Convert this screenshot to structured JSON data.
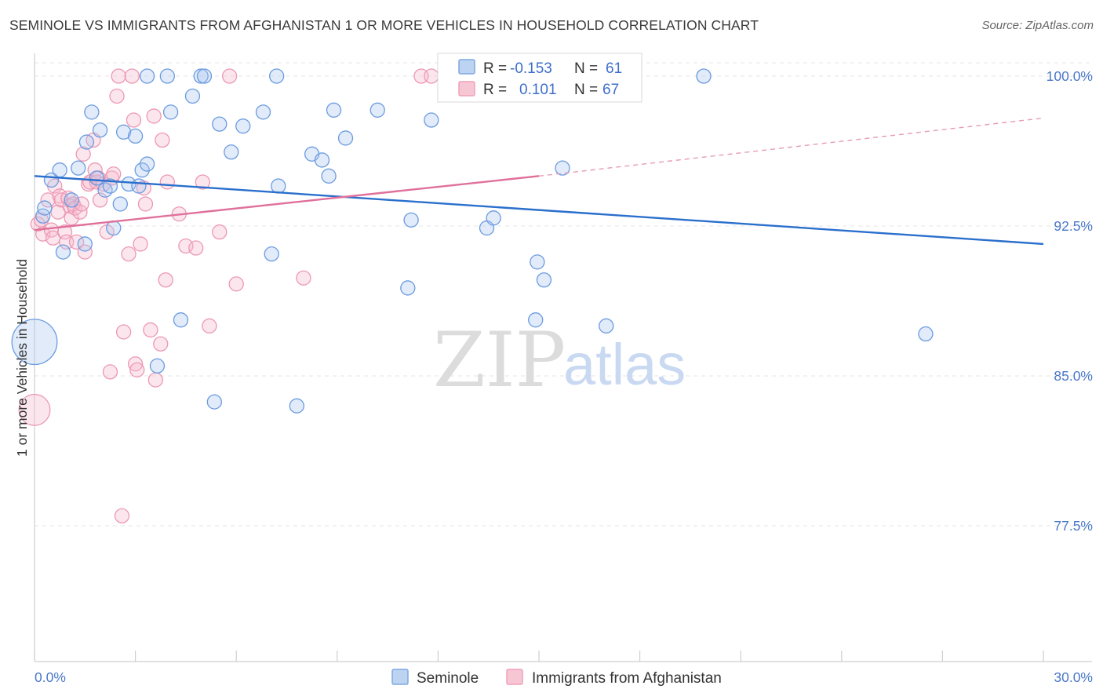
{
  "title": "SEMINOLE VS IMMIGRANTS FROM AFGHANISTAN 1 OR MORE VEHICLES IN HOUSEHOLD CORRELATION CHART",
  "source": "Source: ZipAtlas.com",
  "watermark": {
    "zip": "ZIP",
    "atlas": "atlas"
  },
  "colors": {
    "blue": "#7fa8e0",
    "blue_line": "#2a6fcc",
    "pink": "#f0a0b8",
    "pink_line": "#e0709a",
    "axis_label": "#4a78c8"
  },
  "legend": {
    "rows": [
      {
        "r_label": "R =",
        "r_value": "-0.153",
        "n_label": "N =",
        "n_value": "61"
      },
      {
        "r_label": "R =",
        "r_value": "0.101",
        "n_label": "N =",
        "n_value": "67"
      }
    ]
  },
  "chart_data": {
    "type": "scatter",
    "title": "SEMINOLE VS IMMIGRANTS FROM AFGHANISTAN 1 OR MORE VEHICLES IN HOUSEHOLD CORRELATION CHART",
    "xlabel": "",
    "ylabel": "1 or more Vehicles in Household",
    "xlim": [
      0,
      30
    ],
    "ylim": [
      70,
      100.8
    ],
    "x_tick_labels": [
      "0.0%",
      "30.0%"
    ],
    "y_ticks": [
      77.5,
      85.0,
      92.5,
      100.0
    ],
    "y_tick_labels": [
      "77.5%",
      "85.0%",
      "92.5%",
      "100.0%"
    ],
    "legend_position": "top-center",
    "grid": true,
    "series": [
      {
        "name": "Seminole",
        "points": [
          [
            0.0,
            86.7,
            3.2
          ],
          [
            0.25,
            93.0,
            1
          ],
          [
            0.3,
            93.4,
            1
          ],
          [
            0.5,
            94.8,
            1
          ],
          [
            0.75,
            95.3,
            1
          ],
          [
            0.85,
            91.2,
            1
          ],
          [
            1.1,
            93.8,
            1
          ],
          [
            1.3,
            95.4,
            1
          ],
          [
            1.5,
            91.6,
            1
          ],
          [
            1.55,
            96.7,
            1
          ],
          [
            1.7,
            98.2,
            1
          ],
          [
            1.85,
            94.9,
            1
          ],
          [
            1.95,
            97.3,
            1
          ],
          [
            2.1,
            94.3,
            1
          ],
          [
            2.25,
            94.5,
            1
          ],
          [
            2.35,
            92.4,
            1
          ],
          [
            2.55,
            93.6,
            1
          ],
          [
            2.65,
            97.2,
            1
          ],
          [
            2.8,
            94.6,
            1
          ],
          [
            3.0,
            97.0,
            1
          ],
          [
            3.1,
            94.5,
            1
          ],
          [
            3.2,
            95.3,
            1
          ],
          [
            3.35,
            95.6,
            1
          ],
          [
            3.35,
            100.0,
            1
          ],
          [
            3.65,
            85.5,
            1
          ],
          [
            3.95,
            100.0,
            1
          ],
          [
            4.05,
            98.2,
            1
          ],
          [
            4.35,
            87.8,
            1
          ],
          [
            4.7,
            99.0,
            1
          ],
          [
            4.95,
            100.0,
            1
          ],
          [
            5.05,
            100.0,
            1
          ],
          [
            5.35,
            83.7,
            1
          ],
          [
            5.5,
            97.6,
            1
          ],
          [
            5.85,
            96.2,
            1
          ],
          [
            6.2,
            97.5,
            1
          ],
          [
            6.8,
            98.2,
            1
          ],
          [
            7.05,
            91.1,
            1
          ],
          [
            7.2,
            100.0,
            1
          ],
          [
            7.25,
            94.5,
            1
          ],
          [
            7.8,
            83.5,
            1
          ],
          [
            8.25,
            96.1,
            1
          ],
          [
            8.55,
            95.8,
            1
          ],
          [
            8.75,
            95.0,
            1
          ],
          [
            8.9,
            98.3,
            1
          ],
          [
            9.25,
            96.9,
            1
          ],
          [
            10.2,
            98.3,
            1
          ],
          [
            11.1,
            89.4,
            1
          ],
          [
            11.2,
            92.8,
            1
          ],
          [
            11.8,
            97.8,
            1
          ],
          [
            13.45,
            92.4,
            1
          ],
          [
            13.65,
            92.9,
            1
          ],
          [
            14.9,
            87.8,
            1
          ],
          [
            14.95,
            90.7,
            1
          ],
          [
            15.15,
            89.8,
            1
          ],
          [
            15.7,
            95.4,
            1
          ],
          [
            17.0,
            87.5,
            1
          ],
          [
            19.9,
            100.0,
            1
          ],
          [
            26.5,
            87.1,
            1
          ]
        ]
      },
      {
        "name": "Immigrants from Afghanistan",
        "points": [
          [
            0.0,
            83.3,
            2.2
          ],
          [
            0.1,
            92.6,
            1
          ],
          [
            0.2,
            92.8,
            1
          ],
          [
            0.25,
            92.1,
            1
          ],
          [
            0.4,
            93.8,
            1
          ],
          [
            0.5,
            92.3,
            1
          ],
          [
            0.55,
            91.9,
            1
          ],
          [
            0.6,
            94.5,
            1
          ],
          [
            0.7,
            93.2,
            1
          ],
          [
            0.75,
            94.0,
            1
          ],
          [
            0.8,
            93.8,
            1
          ],
          [
            0.9,
            92.2,
            1
          ],
          [
            0.95,
            91.7,
            1
          ],
          [
            1.0,
            93.9,
            1
          ],
          [
            1.05,
            93.5,
            1
          ],
          [
            1.1,
            92.9,
            1
          ],
          [
            1.15,
            93.6,
            1
          ],
          [
            1.2,
            93.4,
            1
          ],
          [
            1.25,
            91.7,
            1
          ],
          [
            1.35,
            93.2,
            1
          ],
          [
            1.4,
            93.6,
            1
          ],
          [
            1.45,
            96.1,
            1
          ],
          [
            1.5,
            91.2,
            1
          ],
          [
            1.6,
            94.6,
            1
          ],
          [
            1.65,
            94.7,
            1
          ],
          [
            1.75,
            96.8,
            1
          ],
          [
            1.8,
            95.3,
            1
          ],
          [
            1.85,
            94.7,
            1
          ],
          [
            1.9,
            94.9,
            1
          ],
          [
            1.95,
            93.8,
            1
          ],
          [
            2.05,
            94.6,
            1
          ],
          [
            2.15,
            92.2,
            1
          ],
          [
            2.25,
            85.2,
            1
          ],
          [
            2.3,
            94.9,
            1
          ],
          [
            2.35,
            95.1,
            1
          ],
          [
            2.45,
            99.0,
            1
          ],
          [
            2.5,
            100.0,
            1
          ],
          [
            2.6,
            78.0,
            1
          ],
          [
            2.65,
            87.2,
            1
          ],
          [
            2.8,
            91.1,
            1
          ],
          [
            2.9,
            100.0,
            1
          ],
          [
            2.95,
            97.8,
            1
          ],
          [
            3.0,
            85.6,
            1
          ],
          [
            3.05,
            85.3,
            1
          ],
          [
            3.15,
            91.6,
            1
          ],
          [
            3.25,
            94.4,
            1
          ],
          [
            3.3,
            93.6,
            1
          ],
          [
            3.45,
            87.3,
            1
          ],
          [
            3.55,
            98.0,
            1
          ],
          [
            3.6,
            84.8,
            1
          ],
          [
            3.75,
            86.6,
            1
          ],
          [
            3.8,
            96.8,
            1
          ],
          [
            3.9,
            89.8,
            1
          ],
          [
            3.95,
            94.7,
            1
          ],
          [
            4.3,
            93.1,
            1
          ],
          [
            4.5,
            91.5,
            1
          ],
          [
            4.8,
            91.4,
            1
          ],
          [
            5.0,
            94.7,
            1
          ],
          [
            5.2,
            87.5,
            1
          ],
          [
            5.5,
            92.2,
            1
          ],
          [
            5.8,
            100.0,
            1
          ],
          [
            6.0,
            89.6,
            1
          ],
          [
            8.0,
            89.9,
            1
          ],
          [
            11.5,
            100.0,
            1
          ],
          [
            11.8,
            100.0,
            1
          ]
        ]
      }
    ],
    "trend_lines": [
      {
        "series": "Seminole",
        "x": [
          0,
          30
        ],
        "y": [
          95.0,
          91.6
        ]
      },
      {
        "series": "Immigrants from Afghanistan",
        "x": [
          0,
          15
        ],
        "y": [
          92.3,
          95.0
        ],
        "dashed_extension_to": [
          30,
          97.9
        ]
      }
    ]
  },
  "bottom_legend": [
    {
      "label": "Seminole"
    },
    {
      "label": "Immigrants from Afghanistan"
    }
  ]
}
